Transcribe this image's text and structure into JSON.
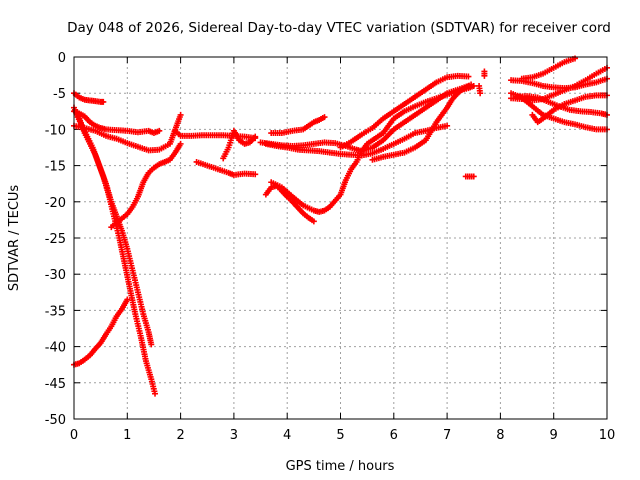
{
  "chart_data": {
    "type": "scatter",
    "title": "Day 048 of 2026, Sidereal Day-to-day VTEC variation (SDTVAR) for receiver cord",
    "xlabel": "GPS time / hours",
    "ylabel": "SDTVAR / TECUs",
    "xlim": [
      0,
      10
    ],
    "ylim": [
      -50,
      0
    ],
    "xticks": [
      0,
      1,
      2,
      3,
      4,
      5,
      6,
      7,
      8,
      9,
      10
    ],
    "yticks": [
      0,
      -5,
      -10,
      -15,
      -20,
      -25,
      -30,
      -35,
      -40,
      -45,
      -50
    ],
    "grid": true,
    "marker": "+",
    "color": "#ff0000",
    "series": [
      {
        "points": [
          [
            0.0,
            -5.0
          ],
          [
            0.1,
            -5.6
          ],
          [
            0.2,
            -5.9
          ],
          [
            0.3,
            -6.0
          ],
          [
            0.4,
            -6.1
          ],
          [
            0.5,
            -6.2
          ],
          [
            0.55,
            -6.2
          ]
        ]
      },
      {
        "points": [
          [
            0.0,
            -7.5
          ],
          [
            0.1,
            -7.8
          ],
          [
            0.2,
            -8.2
          ],
          [
            0.3,
            -9.0
          ],
          [
            0.4,
            -9.5
          ],
          [
            0.5,
            -9.8
          ],
          [
            0.6,
            -10.0
          ],
          [
            0.8,
            -10.1
          ],
          [
            1.0,
            -10.2
          ],
          [
            1.2,
            -10.4
          ],
          [
            1.4,
            -10.2
          ],
          [
            1.5,
            -10.5
          ],
          [
            1.6,
            -10.2
          ]
        ]
      },
      {
        "points": [
          [
            0.0,
            -9.5
          ],
          [
            0.2,
            -9.8
          ],
          [
            0.4,
            -10.2
          ],
          [
            0.6,
            -10.9
          ],
          [
            0.8,
            -11.3
          ],
          [
            1.0,
            -11.9
          ],
          [
            1.2,
            -12.4
          ],
          [
            1.4,
            -12.9
          ],
          [
            1.6,
            -12.8
          ],
          [
            1.8,
            -12.0
          ],
          [
            1.9,
            -10.0
          ],
          [
            2.0,
            -8.0
          ]
        ]
      },
      {
        "points": [
          [
            0.0,
            -7.0
          ],
          [
            0.1,
            -8.5
          ],
          [
            0.2,
            -10.5
          ],
          [
            0.3,
            -12.0
          ],
          [
            0.4,
            -13.5
          ],
          [
            0.5,
            -15.5
          ],
          [
            0.6,
            -17.5
          ],
          [
            0.7,
            -20.0
          ],
          [
            0.8,
            -22.0
          ],
          [
            0.9,
            -24.0
          ],
          [
            1.0,
            -26.5
          ],
          [
            1.1,
            -29.5
          ],
          [
            1.2,
            -32.5
          ],
          [
            1.3,
            -35.5
          ],
          [
            1.4,
            -38.0
          ],
          [
            1.45,
            -39.7
          ]
        ]
      },
      {
        "points": [
          [
            0.05,
            -8.0
          ],
          [
            0.15,
            -9.5
          ],
          [
            0.25,
            -11.0
          ],
          [
            0.35,
            -12.5
          ],
          [
            0.45,
            -14.5
          ],
          [
            0.55,
            -16.5
          ],
          [
            0.65,
            -19.0
          ],
          [
            0.75,
            -22.0
          ],
          [
            0.85,
            -25.0
          ],
          [
            0.95,
            -28.5
          ],
          [
            1.05,
            -32.0
          ],
          [
            1.15,
            -35.5
          ],
          [
            1.25,
            -38.5
          ],
          [
            1.35,
            -42.0
          ],
          [
            1.45,
            -44.5
          ],
          [
            1.52,
            -46.5
          ]
        ]
      },
      {
        "points": [
          [
            0.0,
            -42.5
          ],
          [
            0.1,
            -42.3
          ],
          [
            0.2,
            -41.8
          ],
          [
            0.3,
            -41.2
          ],
          [
            0.4,
            -40.3
          ],
          [
            0.5,
            -39.5
          ],
          [
            0.6,
            -38.3
          ],
          [
            0.7,
            -37.2
          ],
          [
            0.8,
            -35.8
          ],
          [
            0.9,
            -34.8
          ],
          [
            1.0,
            -33.5
          ]
        ]
      },
      {
        "points": [
          [
            0.7,
            -23.5
          ],
          [
            0.8,
            -22.8
          ],
          [
            0.9,
            -22.3
          ],
          [
            1.0,
            -21.7
          ],
          [
            1.1,
            -20.7
          ],
          [
            1.2,
            -19.3
          ],
          [
            1.3,
            -17.3
          ],
          [
            1.4,
            -16.0
          ],
          [
            1.5,
            -15.3
          ],
          [
            1.6,
            -14.8
          ],
          [
            1.7,
            -14.5
          ],
          [
            1.8,
            -14.2
          ],
          [
            1.9,
            -13.2
          ],
          [
            2.0,
            -12.0
          ]
        ]
      },
      {
        "points": [
          [
            1.9,
            -10.2
          ],
          [
            2.0,
            -10.9
          ],
          [
            2.2,
            -10.9
          ],
          [
            2.4,
            -10.8
          ],
          [
            2.6,
            -10.8
          ],
          [
            2.8,
            -10.8
          ],
          [
            3.0,
            -10.9
          ],
          [
            3.2,
            -11.0
          ],
          [
            3.4,
            -11.2
          ]
        ]
      },
      {
        "points": [
          [
            2.3,
            -14.5
          ],
          [
            2.5,
            -15.0
          ],
          [
            2.7,
            -15.5
          ],
          [
            2.9,
            -16.0
          ],
          [
            3.0,
            -16.3
          ],
          [
            3.2,
            -16.1
          ],
          [
            3.4,
            -16.2
          ]
        ]
      },
      {
        "points": [
          [
            2.8,
            -14.0
          ],
          [
            2.9,
            -12.5
          ],
          [
            3.0,
            -10.2
          ],
          [
            3.1,
            -11.5
          ],
          [
            3.2,
            -12.0
          ],
          [
            3.3,
            -11.8
          ],
          [
            3.4,
            -11.0
          ]
        ]
      },
      {
        "points": [
          [
            3.7,
            -10.5
          ],
          [
            3.9,
            -10.5
          ],
          [
            4.1,
            -10.2
          ],
          [
            4.3,
            -10.0
          ],
          [
            4.5,
            -9.0
          ],
          [
            4.6,
            -8.7
          ],
          [
            4.7,
            -8.3
          ]
        ]
      },
      {
        "points": [
          [
            3.6,
            -12.0
          ],
          [
            3.8,
            -12.3
          ],
          [
            4.0,
            -12.5
          ],
          [
            4.2,
            -12.8
          ],
          [
            4.4,
            -12.9
          ],
          [
            4.6,
            -13.0
          ],
          [
            4.8,
            -13.2
          ],
          [
            5.0,
            -13.4
          ],
          [
            5.2,
            -13.5
          ],
          [
            5.4,
            -13.6
          ],
          [
            5.6,
            -13.3
          ],
          [
            5.8,
            -12.7
          ],
          [
            6.0,
            -12.0
          ],
          [
            6.2,
            -11.3
          ],
          [
            6.4,
            -10.5
          ],
          [
            6.6,
            -10.2
          ],
          [
            6.8,
            -9.8
          ],
          [
            7.0,
            -9.5
          ]
        ]
      },
      {
        "points": [
          [
            3.6,
            -19.0
          ],
          [
            3.7,
            -18.0
          ],
          [
            3.8,
            -17.8
          ],
          [
            3.9,
            -18.5
          ],
          [
            4.0,
            -19.3
          ],
          [
            4.1,
            -20.0
          ],
          [
            4.2,
            -20.8
          ],
          [
            4.3,
            -21.6
          ],
          [
            4.4,
            -22.2
          ],
          [
            4.5,
            -22.7
          ]
        ]
      },
      {
        "points": [
          [
            3.7,
            -17.3
          ],
          [
            3.9,
            -18.0
          ],
          [
            4.1,
            -19.3
          ],
          [
            4.3,
            -20.5
          ],
          [
            4.5,
            -21.2
          ],
          [
            4.6,
            -21.4
          ],
          [
            4.7,
            -21.2
          ],
          [
            4.8,
            -20.7
          ],
          [
            5.0,
            -19.0
          ],
          [
            5.1,
            -17.0
          ],
          [
            5.2,
            -15.5
          ],
          [
            5.3,
            -14.5
          ],
          [
            5.4,
            -13.0
          ],
          [
            5.5,
            -12.0
          ],
          [
            5.6,
            -11.5
          ],
          [
            5.8,
            -10.5
          ],
          [
            6.0,
            -8.5
          ],
          [
            6.2,
            -7.5
          ],
          [
            6.4,
            -6.8
          ],
          [
            6.6,
            -6.2
          ],
          [
            6.8,
            -5.7
          ],
          [
            7.0,
            -5.2
          ],
          [
            7.2,
            -4.7
          ],
          [
            7.4,
            -4.3
          ],
          [
            7.5,
            -4.0
          ]
        ]
      },
      {
        "points": [
          [
            3.5,
            -11.8
          ],
          [
            3.7,
            -12.0
          ],
          [
            3.9,
            -12.2
          ],
          [
            4.1,
            -12.3
          ],
          [
            4.3,
            -12.2
          ],
          [
            4.5,
            -12.0
          ],
          [
            4.7,
            -11.8
          ],
          [
            4.9,
            -11.9
          ],
          [
            5.1,
            -12.3
          ],
          [
            5.3,
            -12.8
          ],
          [
            5.4,
            -13.0
          ],
          [
            5.6,
            -12.5
          ],
          [
            5.8,
            -11.5
          ],
          [
            6.0,
            -10.0
          ],
          [
            6.2,
            -9.0
          ],
          [
            6.4,
            -8.0
          ],
          [
            6.6,
            -7.0
          ],
          [
            6.8,
            -6.0
          ],
          [
            7.0,
            -5.0
          ],
          [
            7.2,
            -4.5
          ],
          [
            7.4,
            -4.0
          ]
        ]
      },
      {
        "points": [
          [
            5.0,
            -12.5
          ],
          [
            5.2,
            -11.7
          ],
          [
            5.4,
            -10.7
          ],
          [
            5.6,
            -9.8
          ],
          [
            5.8,
            -8.5
          ],
          [
            6.0,
            -7.5
          ],
          [
            6.2,
            -6.5
          ],
          [
            6.4,
            -5.5
          ],
          [
            6.6,
            -4.5
          ],
          [
            6.8,
            -3.5
          ],
          [
            7.0,
            -2.8
          ],
          [
            7.2,
            -2.6
          ],
          [
            7.4,
            -2.7
          ]
        ]
      },
      {
        "points": [
          [
            5.6,
            -14.2
          ],
          [
            5.8,
            -13.8
          ],
          [
            6.0,
            -13.5
          ],
          [
            6.2,
            -13.2
          ],
          [
            6.4,
            -12.5
          ],
          [
            6.6,
            -11.5
          ],
          [
            6.8,
            -9.0
          ],
          [
            7.0,
            -7.0
          ],
          [
            7.1,
            -5.8
          ],
          [
            7.2,
            -5.0
          ],
          [
            7.3,
            -4.4
          ],
          [
            7.45,
            -3.8
          ]
        ]
      },
      {
        "points": [
          [
            7.6,
            -4.0
          ],
          [
            7.62,
            -5.0
          ]
        ]
      },
      {
        "points": [
          [
            7.7,
            -2.0
          ],
          [
            7.7,
            -2.6
          ]
        ]
      },
      {
        "points": [
          [
            7.35,
            -16.5
          ],
          [
            7.5,
            -16.5
          ]
        ]
      },
      {
        "points": [
          [
            8.2,
            -3.2
          ],
          [
            8.4,
            -3.3
          ],
          [
            8.6,
            -3.6
          ],
          [
            8.8,
            -4.0
          ],
          [
            9.0,
            -4.2
          ],
          [
            9.2,
            -4.3
          ],
          [
            9.4,
            -4.2
          ],
          [
            9.6,
            -3.8
          ],
          [
            9.8,
            -3.5
          ],
          [
            10.0,
            -3.0
          ]
        ]
      },
      {
        "points": [
          [
            8.2,
            -5.7
          ],
          [
            8.4,
            -5.8
          ],
          [
            8.6,
            -6.0
          ],
          [
            8.8,
            -5.8
          ],
          [
            9.0,
            -5.2
          ],
          [
            9.2,
            -4.6
          ],
          [
            9.4,
            -4.0
          ],
          [
            9.6,
            -3.2
          ],
          [
            9.8,
            -2.3
          ],
          [
            10.0,
            -1.5
          ]
        ]
      },
      {
        "points": [
          [
            8.2,
            -5.0
          ],
          [
            8.4,
            -5.6
          ],
          [
            8.6,
            -6.8
          ],
          [
            8.8,
            -8.0
          ],
          [
            9.0,
            -8.5
          ],
          [
            9.2,
            -9.0
          ],
          [
            9.4,
            -9.3
          ],
          [
            9.6,
            -9.7
          ],
          [
            9.8,
            -10.0
          ],
          [
            10.0,
            -10.0
          ]
        ]
      },
      {
        "points": [
          [
            8.4,
            -3.0
          ],
          [
            8.6,
            -2.8
          ],
          [
            8.8,
            -2.3
          ],
          [
            9.0,
            -1.5
          ],
          [
            9.2,
            -0.7
          ],
          [
            9.4,
            -0.2
          ]
        ]
      },
      {
        "points": [
          [
            8.6,
            -8.0
          ],
          [
            8.7,
            -9.0
          ],
          [
            8.8,
            -8.5
          ],
          [
            9.0,
            -7.3
          ],
          [
            9.2,
            -6.5
          ],
          [
            9.4,
            -6.0
          ],
          [
            9.6,
            -5.5
          ],
          [
            9.8,
            -5.3
          ],
          [
            10.0,
            -5.3
          ]
        ]
      },
      {
        "points": [
          [
            8.3,
            -5.5
          ],
          [
            8.5,
            -5.4
          ],
          [
            8.7,
            -5.6
          ],
          [
            8.9,
            -6.2
          ],
          [
            9.1,
            -6.8
          ],
          [
            9.3,
            -7.3
          ],
          [
            9.5,
            -7.5
          ],
          [
            9.7,
            -7.6
          ],
          [
            9.9,
            -7.8
          ],
          [
            10.0,
            -8.0
          ]
        ]
      }
    ]
  }
}
